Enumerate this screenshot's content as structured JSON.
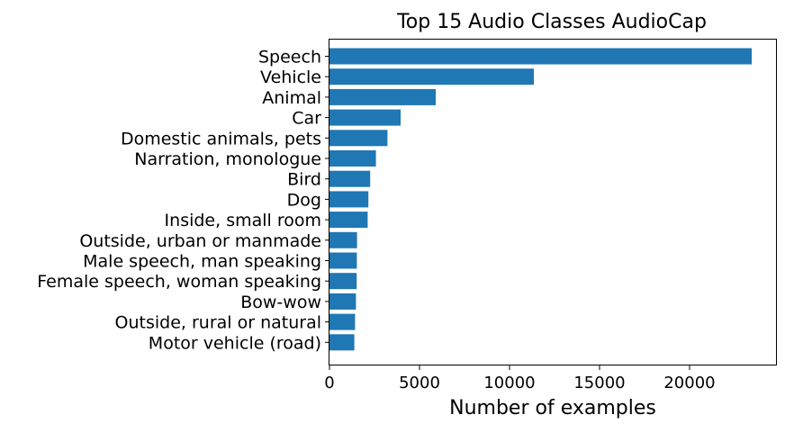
{
  "chart_data": {
    "type": "bar",
    "orientation": "horizontal",
    "title": "Top 15 Audio Classes AudioCap",
    "xlabel": "Number of examples",
    "ylabel": "",
    "xlim": [
      0,
      24800
    ],
    "xticks": [
      0,
      5000,
      10000,
      15000,
      20000
    ],
    "xtick_labels": [
      "0",
      "5000",
      "10000",
      "15000",
      "20000"
    ],
    "grid": false,
    "legend": "none",
    "bar_color": "#1f77b4",
    "categories": [
      "Speech",
      "Vehicle",
      "Animal",
      "Car",
      "Domestic animals, pets",
      "Narration, monologue",
      "Bird",
      "Dog",
      "Inside, small room",
      "Outside, urban or manmade",
      "Male speech, man speaking",
      "Female speech, woman speaking",
      "Bow-wow",
      "Outside, rural or natural",
      "Motor vehicle (road)"
    ],
    "values": [
      23450,
      11350,
      5900,
      3950,
      3220,
      2580,
      2260,
      2160,
      2120,
      1530,
      1520,
      1510,
      1470,
      1420,
      1380
    ]
  }
}
